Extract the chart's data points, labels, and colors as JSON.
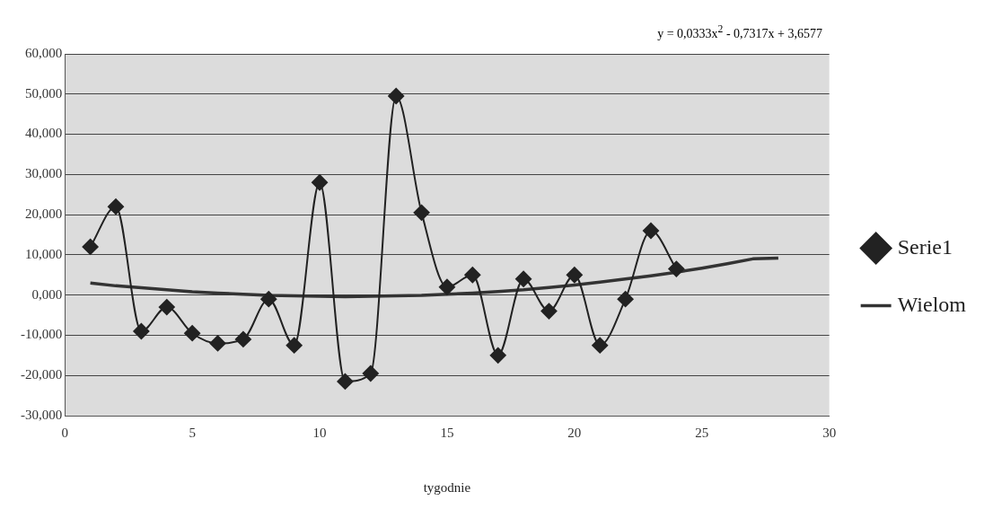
{
  "chart_data": {
    "type": "line",
    "xlabel": "tygodnie",
    "annotations": [
      "y = 0,0333x$^{2}$ - 0,7317x + 3,6577"
    ],
    "xlim": [
      0,
      30
    ],
    "xticks": [
      0,
      5,
      10,
      15,
      20,
      25,
      30
    ],
    "ylim": [
      -30,
      60
    ],
    "yticks": [
      {
        "value": -30,
        "label": "-30,000"
      },
      {
        "value": -20,
        "label": "-20,000"
      },
      {
        "value": -10,
        "label": "-10,000"
      },
      {
        "value": 0,
        "label": "0,000"
      },
      {
        "value": 10,
        "label": "10,000"
      },
      {
        "value": 20,
        "label": "20,000"
      },
      {
        "value": 30,
        "label": "30,000"
      },
      {
        "value": 40,
        "label": "40,000"
      },
      {
        "value": 50,
        "label": "50,000"
      },
      {
        "value": 60,
        "label": "60,000"
      }
    ],
    "grid": "y",
    "legend": "right",
    "marker": "diamond",
    "series": [
      {
        "name": "Serie1",
        "color": "#222222",
        "x": [
          1,
          2,
          3,
          4,
          5,
          6,
          7,
          8,
          9,
          10,
          11,
          12,
          13,
          14,
          15,
          16,
          17,
          18,
          19,
          20,
          21,
          22,
          23,
          24
        ],
        "values": [
          12,
          22,
          -9,
          -3,
          -9.5,
          -12,
          -11,
          -1,
          -12.5,
          28,
          -21.5,
          -19.5,
          49.5,
          20.5,
          2,
          5,
          -15,
          4,
          -4,
          5,
          -12.5,
          -1,
          16,
          6.5
        ]
      },
      {
        "name": "Wielom",
        "color": "#333333",
        "marker": "none",
        "x": [
          1,
          2,
          3,
          4,
          5,
          6,
          7,
          8,
          9,
          10,
          11,
          12,
          13,
          14,
          15,
          16,
          17,
          18,
          19,
          20,
          21,
          22,
          23,
          24,
          25,
          26,
          27,
          28
        ],
        "values": [
          3,
          2.3,
          1.8,
          1.3,
          0.8,
          0.5,
          0.2,
          -0.1,
          -0.2,
          -0.3,
          -0.4,
          -0.3,
          -0.2,
          -0.1,
          0.2,
          0.5,
          0.9,
          1.3,
          1.9,
          2.5,
          3.2,
          4,
          4.8,
          5.7,
          6.7,
          7.8,
          9,
          9.2
        ]
      }
    ]
  }
}
